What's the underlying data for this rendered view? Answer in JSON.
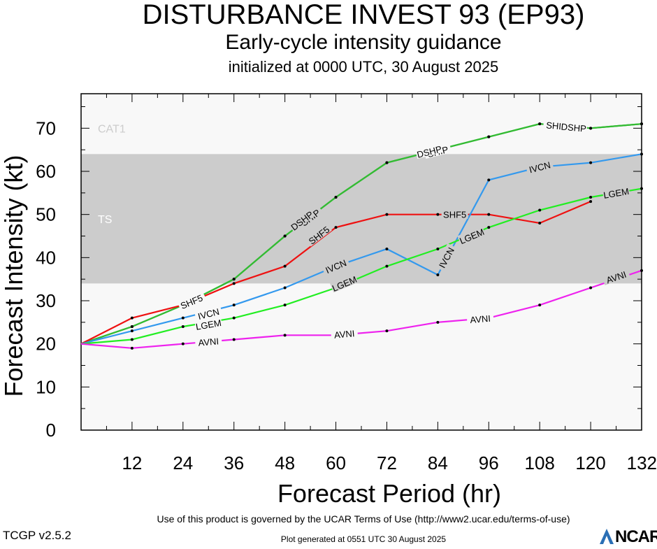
{
  "title": "DISTURBANCE INVEST 93 (EP93)",
  "subtitle": "Early-cycle intensity guidance",
  "init_line": "initialized at 0000 UTC, 30 August 2025",
  "footer": {
    "terms": "Use of this product is governed by the UCAR Terms of Use (http://www2.ucar.edu/terms-of-use)",
    "version": "TCGP v2.5.2",
    "generated": "Plot generated at 0551 UTC   30 August 2025",
    "logo": "NCAR"
  },
  "chart_data": {
    "type": "line",
    "xlabel": "Forecast Period (hr)",
    "ylabel": "Forecast Intensity (kt)",
    "xlim": [
      0,
      132
    ],
    "ylim": [
      0,
      78
    ],
    "xticks": [
      12,
      24,
      36,
      48,
      60,
      72,
      84,
      96,
      108,
      120,
      132
    ],
    "yticks": [
      0,
      10,
      20,
      30,
      40,
      50,
      60,
      70
    ],
    "grid": false,
    "bands": [
      {
        "label": "CAT1",
        "from": 64,
        "to": 78,
        "color": "#f8f8f8"
      },
      {
        "label": "TS",
        "from": 34,
        "to": 64,
        "color": "#cccccc"
      }
    ],
    "series": [
      {
        "name": "SHIP",
        "color": "#33bb33",
        "x": [
          0,
          12,
          24,
          36,
          48,
          60,
          72,
          84,
          96,
          108,
          120,
          132
        ],
        "values": [
          20,
          24,
          29,
          35,
          45,
          54,
          62,
          65,
          68,
          71,
          70,
          71
        ]
      },
      {
        "name": "DSHP",
        "color": "#33bb33",
        "x": [
          0,
          12,
          24,
          36,
          48,
          60,
          72,
          84,
          96,
          108,
          120,
          132
        ],
        "values": [
          20,
          24,
          29,
          35,
          45,
          54,
          62,
          65,
          68,
          71,
          70,
          71
        ]
      },
      {
        "name": "SHF5",
        "color": "#ee1111",
        "x": [
          0,
          12,
          24,
          36,
          48,
          60,
          72,
          84,
          96,
          108,
          120
        ],
        "values": [
          20,
          26,
          29,
          34,
          38,
          47,
          50,
          50,
          50,
          48,
          53
        ]
      },
      {
        "name": "IVCN",
        "color": "#3399ee",
        "x": [
          0,
          12,
          24,
          36,
          48,
          60,
          72,
          84,
          96,
          108,
          120,
          132
        ],
        "values": [
          20,
          23,
          26,
          29,
          33,
          38,
          42,
          36,
          58,
          61,
          62,
          64
        ]
      },
      {
        "name": "LGEM",
        "color": "#22ee22",
        "x": [
          0,
          12,
          24,
          36,
          48,
          60,
          72,
          84,
          96,
          108,
          120,
          132
        ],
        "values": [
          20,
          21,
          24,
          26,
          29,
          33,
          38,
          42,
          47,
          51,
          54,
          56
        ]
      },
      {
        "name": "AVNI",
        "color": "#ee22ee",
        "x": [
          0,
          12,
          24,
          36,
          48,
          60,
          72,
          84,
          96,
          108,
          120,
          132
        ],
        "values": [
          20,
          19,
          20,
          21,
          22,
          22,
          23,
          25,
          26,
          29,
          33,
          37
        ]
      }
    ]
  }
}
